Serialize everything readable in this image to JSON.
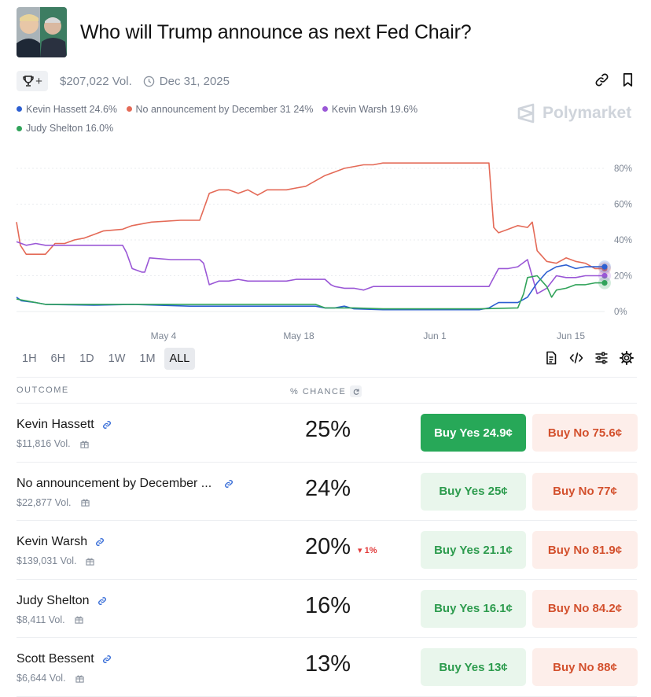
{
  "market": {
    "title": "Who will Trump announce as next Fed Chair?",
    "volume": "$207,022 Vol.",
    "end_date": "Dec 31, 2025",
    "trophy_plus": "+",
    "brand": "Polymarket"
  },
  "legend": [
    {
      "label": "Kevin Hassett 24.6%",
      "color": "#2d5fd1"
    },
    {
      "label": "No announcement by December 31 24%",
      "color": "#e46a57"
    },
    {
      "label": "Kevin Warsh 19.6%",
      "color": "#9a57d6"
    },
    {
      "label": "Judy Shelton 16.0%",
      "color": "#31a35a"
    }
  ],
  "chart_data": {
    "type": "line",
    "x_tick_labels": [
      "May 4",
      "May 18",
      "Jun 1",
      "Jun 15"
    ],
    "y_tick_labels": [
      "80%",
      "60%",
      "40%",
      "20%",
      "0%"
    ],
    "ylim": [
      0,
      85
    ],
    "grid": true,
    "series": [
      {
        "name": "No announcement by December 31",
        "color": "#e46a57",
        "values": [
          [
            0,
            50
          ],
          [
            0.4,
            37
          ],
          [
            1,
            32
          ],
          [
            3,
            32
          ],
          [
            4,
            38
          ],
          [
            5,
            38
          ],
          [
            6,
            40
          ],
          [
            7,
            41
          ],
          [
            8,
            43
          ],
          [
            9,
            45
          ],
          [
            11,
            46
          ],
          [
            12,
            48
          ],
          [
            14,
            50
          ],
          [
            17,
            51
          ],
          [
            19,
            51
          ],
          [
            19.6,
            60
          ],
          [
            20,
            66
          ],
          [
            21,
            68
          ],
          [
            22,
            68
          ],
          [
            23,
            66
          ],
          [
            24,
            68
          ],
          [
            25,
            65
          ],
          [
            26,
            68
          ],
          [
            28,
            68
          ],
          [
            29,
            69
          ],
          [
            30,
            70
          ],
          [
            31,
            73
          ],
          [
            32,
            76
          ],
          [
            33,
            78
          ],
          [
            34,
            80
          ],
          [
            36,
            82
          ],
          [
            37,
            82
          ],
          [
            38,
            83
          ],
          [
            49,
            83
          ],
          [
            49.5,
            47
          ],
          [
            50,
            44
          ],
          [
            51,
            46
          ],
          [
            52,
            48
          ],
          [
            53,
            47
          ],
          [
            53.5,
            50
          ],
          [
            54,
            34
          ],
          [
            55,
            28
          ],
          [
            56,
            27
          ],
          [
            57,
            30
          ],
          [
            58,
            28
          ],
          [
            59,
            27
          ],
          [
            60,
            24
          ],
          [
            61,
            24
          ]
        ]
      },
      {
        "name": "Kevin Warsh",
        "color": "#9a57d6",
        "values": [
          [
            0,
            39
          ],
          [
            1,
            37
          ],
          [
            2,
            38
          ],
          [
            3,
            37
          ],
          [
            8,
            37
          ],
          [
            11,
            37
          ],
          [
            11.4,
            33
          ],
          [
            12,
            24
          ],
          [
            13,
            22
          ],
          [
            13.3,
            22
          ],
          [
            13.8,
            30
          ],
          [
            16,
            29
          ],
          [
            19,
            29
          ],
          [
            19.4,
            27
          ],
          [
            20,
            15
          ],
          [
            21,
            17
          ],
          [
            22,
            17
          ],
          [
            23,
            18
          ],
          [
            24,
            17
          ],
          [
            26,
            17
          ],
          [
            28,
            17
          ],
          [
            29,
            18
          ],
          [
            32,
            18
          ],
          [
            32.6,
            15
          ],
          [
            33,
            14
          ],
          [
            34,
            13
          ],
          [
            35,
            13
          ],
          [
            36,
            12
          ],
          [
            37,
            14
          ],
          [
            48,
            14
          ],
          [
            49,
            14
          ],
          [
            50,
            24
          ],
          [
            51,
            24
          ],
          [
            52,
            25
          ],
          [
            53,
            29
          ],
          [
            54,
            10
          ],
          [
            55,
            13
          ],
          [
            56,
            20
          ],
          [
            57,
            19
          ],
          [
            58,
            19
          ],
          [
            59,
            20
          ],
          [
            60,
            20
          ],
          [
            61,
            20
          ]
        ]
      },
      {
        "name": "Kevin Hassett",
        "color": "#2d5fd1",
        "values": [
          [
            0,
            8
          ],
          [
            0.5,
            6
          ],
          [
            2,
            5
          ],
          [
            3,
            4
          ],
          [
            8,
            3.5
          ],
          [
            12,
            4
          ],
          [
            18,
            3
          ],
          [
            27,
            3
          ],
          [
            31,
            3
          ],
          [
            32,
            2
          ],
          [
            33,
            2
          ],
          [
            34,
            3
          ],
          [
            35,
            1.5
          ],
          [
            38,
            1
          ],
          [
            48,
            1
          ],
          [
            49,
            2
          ],
          [
            50,
            5
          ],
          [
            52,
            5
          ],
          [
            53,
            8
          ],
          [
            54,
            16
          ],
          [
            55,
            22
          ],
          [
            56,
            25
          ],
          [
            57,
            26
          ],
          [
            58,
            24
          ],
          [
            59,
            25
          ],
          [
            60,
            25
          ],
          [
            61,
            25
          ]
        ]
      },
      {
        "name": "Judy Shelton",
        "color": "#31a35a",
        "values": [
          [
            0,
            7
          ],
          [
            2,
            5
          ],
          [
            3,
            4
          ],
          [
            8,
            4
          ],
          [
            12,
            4
          ],
          [
            18,
            4
          ],
          [
            27,
            4
          ],
          [
            31,
            4
          ],
          [
            32,
            2
          ],
          [
            33,
            2
          ],
          [
            35,
            2
          ],
          [
            38,
            1.5
          ],
          [
            48,
            1.5
          ],
          [
            52,
            2
          ],
          [
            52.6,
            10
          ],
          [
            53,
            19
          ],
          [
            54,
            20
          ],
          [
            55,
            14
          ],
          [
            55.5,
            8
          ],
          [
            56,
            12
          ],
          [
            57,
            13
          ],
          [
            58,
            15
          ],
          [
            59,
            15
          ],
          [
            60,
            16
          ],
          [
            61,
            16
          ]
        ]
      }
    ]
  },
  "time_ranges": [
    "1H",
    "6H",
    "1D",
    "1W",
    "1M",
    "ALL"
  ],
  "active_range": "ALL",
  "table": {
    "col_outcome": "OUTCOME",
    "col_chance": "% CHANCE",
    "rows": [
      {
        "name": "Kevin Hassett",
        "volume": "$11,816 Vol.",
        "chance": "25%",
        "change": "",
        "buy_yes": "Buy Yes 24.9¢",
        "buy_no": "Buy No 75.6¢"
      },
      {
        "name": "No announcement by December ...",
        "volume": "$22,877 Vol.",
        "chance": "24%",
        "change": "",
        "buy_yes": "Buy Yes 25¢",
        "buy_no": "Buy No 77¢"
      },
      {
        "name": "Kevin Warsh",
        "volume": "$139,031 Vol.",
        "chance": "20%",
        "change": "▾ 1%",
        "buy_yes": "Buy Yes 21.1¢",
        "buy_no": "Buy No 81.9¢"
      },
      {
        "name": "Judy Shelton",
        "volume": "$8,411 Vol.",
        "chance": "16%",
        "change": "",
        "buy_yes": "Buy Yes 16.1¢",
        "buy_no": "Buy No 84.2¢"
      },
      {
        "name": "Scott Bessent",
        "volume": "$6,644 Vol.",
        "chance": "13%",
        "change": "",
        "buy_yes": "Buy Yes 13¢",
        "buy_no": "Buy No 88¢"
      }
    ]
  }
}
